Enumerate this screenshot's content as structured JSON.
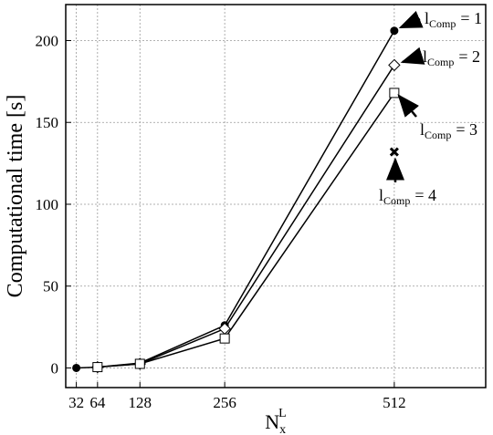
{
  "chart_data": {
    "type": "line",
    "ylabel": "Computational time [s]",
    "xlabel": {
      "base": "N",
      "sub": "x",
      "sup": "L"
    },
    "xlim": [
      16,
      650
    ],
    "ylim": [
      -12,
      222
    ],
    "xticks": [
      32,
      64,
      128,
      256,
      512
    ],
    "yticks": [
      0,
      50,
      100,
      150,
      200
    ],
    "grid": true,
    "series": [
      {
        "name": {
          "base": "l",
          "sub": "Comp",
          "rest": "= 1"
        },
        "marker": "circle",
        "x": [
          32,
          64,
          128,
          256,
          512
        ],
        "values": [
          0,
          0.5,
          3,
          26,
          206
        ]
      },
      {
        "name": {
          "base": "l",
          "sub": "Comp",
          "rest": "= 2"
        },
        "marker": "diamond",
        "x": [
          64,
          128,
          256,
          512
        ],
        "values": [
          0.5,
          2.5,
          24,
          185
        ]
      },
      {
        "name": {
          "base": "l",
          "sub": "Comp",
          "rest": "= 3"
        },
        "marker": "square",
        "x": [
          64,
          128,
          256,
          512
        ],
        "values": [
          0.5,
          2.5,
          18,
          168
        ]
      },
      {
        "name": {
          "base": "l",
          "sub": "Comp",
          "rest": "= 4"
        },
        "marker": "cross",
        "x": [
          512
        ],
        "values": [
          132
        ]
      }
    ]
  }
}
